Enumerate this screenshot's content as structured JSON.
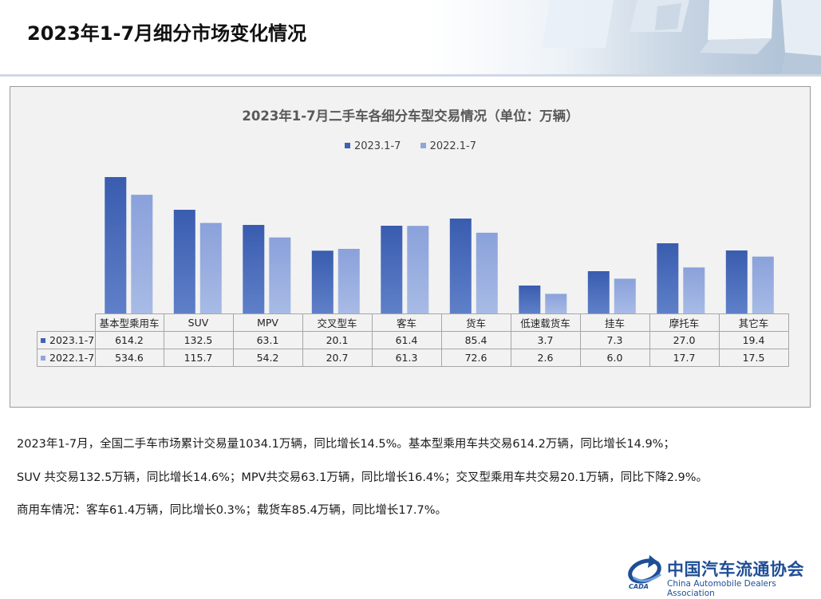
{
  "page_title": "2023年1-7月细分市场变化情况",
  "chart_data": {
    "type": "bar",
    "title": "2023年1-7月二手车各细分车型交易情况（单位：万辆）",
    "categories": [
      "基本型乘用车",
      "SUV",
      "MPV",
      "交叉型车",
      "客车",
      "货车",
      "低速载货车",
      "挂车",
      "摩托车",
      "其它车"
    ],
    "series": [
      {
        "name": "2023.1-7",
        "color": "#3f62b1",
        "values": [
          "614.2",
          "132.5",
          "63.1",
          "20.1",
          "61.4",
          "85.4",
          "3.7",
          "7.3",
          "27.0",
          "19.4"
        ]
      },
      {
        "name": "2022.1-7",
        "color": "#8fa6dc",
        "values": [
          "534.6",
          "115.7",
          "54.2",
          "20.7",
          "61.3",
          "72.6",
          "2.6",
          "6.0",
          "17.7",
          "17.5"
        ]
      }
    ],
    "legend_position": "top",
    "grid": false,
    "data_table": true
  },
  "summary": [
    "2023年1-7月，全国二手车市场累计交易量1034.1万辆，同比增长14.5%。基本型乘用车共交易614.2万辆，同比增长14.9%；",
    "SUV 共交易132.5万辆，同比增长14.6%；MPV共交易63.1万辆，同比增长16.4%；交叉型乘用车共交易20.1万辆，同比下降2.9%。",
    "商用车情况：客车61.4万辆，同比增长0.3%；载货车85.4万辆，同比增长17.7%。"
  ],
  "logo": {
    "name_cn": "中国汽车流通协会",
    "name_en": "China Automobile Dealers Association",
    "abbr": "CADA"
  }
}
